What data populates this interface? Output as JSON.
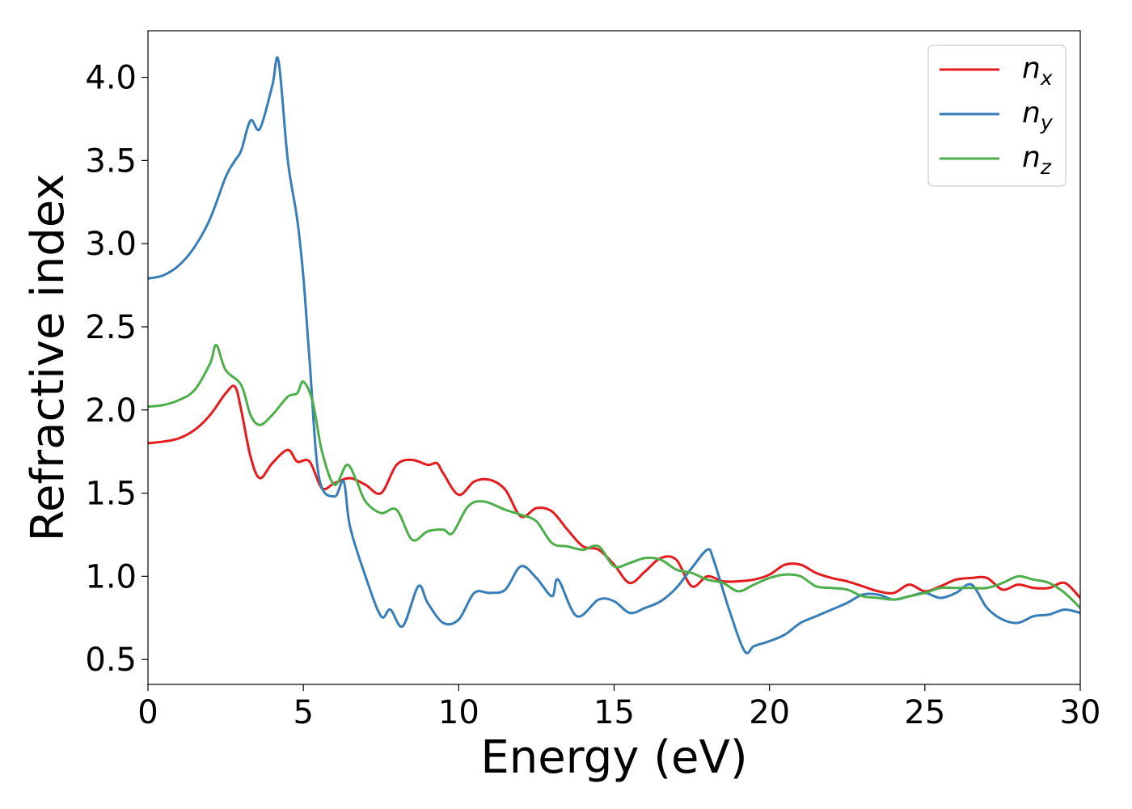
{
  "chart_data": {
    "type": "line",
    "title": "",
    "xlabel": "Energy (eV)",
    "ylabel": "Refractive index",
    "xlim": [
      0,
      30
    ],
    "ylim": [
      0.35,
      4.28
    ],
    "xticks": [
      0,
      5,
      10,
      15,
      20,
      25,
      30
    ],
    "yticks": [
      0.5,
      1.0,
      1.5,
      2.0,
      2.5,
      3.0,
      3.5,
      4.0
    ],
    "xtick_labels": [
      "0",
      "5",
      "10",
      "15",
      "20",
      "25",
      "30"
    ],
    "ytick_labels": [
      "0.5",
      "1.0",
      "1.5",
      "2.0",
      "2.5",
      "3.0",
      "3.5",
      "4.0"
    ],
    "grid": false,
    "legend_position": "top-right",
    "series": [
      {
        "name": "n",
        "subscript": "x",
        "color": "#e41a1c",
        "points": [
          [
            0,
            1.8
          ],
          [
            0.5,
            1.81
          ],
          [
            1.0,
            1.83
          ],
          [
            1.5,
            1.88
          ],
          [
            2.0,
            1.97
          ],
          [
            2.5,
            2.1
          ],
          [
            2.8,
            2.14
          ],
          [
            3.0,
            2.0
          ],
          [
            3.3,
            1.72
          ],
          [
            3.6,
            1.59
          ],
          [
            4.0,
            1.68
          ],
          [
            4.5,
            1.76
          ],
          [
            4.8,
            1.69
          ],
          [
            5.2,
            1.69
          ],
          [
            5.6,
            1.53
          ],
          [
            6.0,
            1.56
          ],
          [
            6.5,
            1.59
          ],
          [
            7.0,
            1.55
          ],
          [
            7.5,
            1.5
          ],
          [
            8.0,
            1.67
          ],
          [
            8.5,
            1.7
          ],
          [
            9.0,
            1.67
          ],
          [
            9.3,
            1.68
          ],
          [
            9.5,
            1.62
          ],
          [
            10.0,
            1.49
          ],
          [
            10.5,
            1.57
          ],
          [
            11.0,
            1.58
          ],
          [
            11.5,
            1.52
          ],
          [
            12.0,
            1.36
          ],
          [
            12.5,
            1.41
          ],
          [
            13.0,
            1.39
          ],
          [
            13.5,
            1.28
          ],
          [
            14.0,
            1.18
          ],
          [
            14.5,
            1.16
          ],
          [
            15.0,
            1.07
          ],
          [
            15.5,
            0.96
          ],
          [
            16.0,
            1.03
          ],
          [
            16.5,
            1.11
          ],
          [
            17.0,
            1.1
          ],
          [
            17.5,
            0.94
          ],
          [
            18.0,
            1.0
          ],
          [
            18.5,
            0.97
          ],
          [
            19.0,
            0.97
          ],
          [
            19.5,
            0.98
          ],
          [
            20.0,
            1.01
          ],
          [
            20.5,
            1.07
          ],
          [
            21.0,
            1.07
          ],
          [
            21.5,
            1.02
          ],
          [
            22.0,
            0.99
          ],
          [
            22.5,
            0.97
          ],
          [
            23.0,
            0.94
          ],
          [
            23.5,
            0.91
          ],
          [
            24.0,
            0.9
          ],
          [
            24.5,
            0.95
          ],
          [
            25.0,
            0.91
          ],
          [
            25.5,
            0.94
          ],
          [
            26.0,
            0.98
          ],
          [
            26.5,
            0.99
          ],
          [
            27.0,
            0.99
          ],
          [
            27.5,
            0.92
          ],
          [
            28.0,
            0.95
          ],
          [
            28.5,
            0.93
          ],
          [
            29.0,
            0.93
          ],
          [
            29.5,
            0.96
          ],
          [
            30.0,
            0.87
          ]
        ]
      },
      {
        "name": "n",
        "subscript": "y",
        "color": "#377eb8",
        "points": [
          [
            0,
            2.79
          ],
          [
            0.5,
            2.81
          ],
          [
            1.0,
            2.87
          ],
          [
            1.5,
            2.98
          ],
          [
            2.0,
            3.15
          ],
          [
            2.5,
            3.4
          ],
          [
            2.8,
            3.5
          ],
          [
            3.0,
            3.56
          ],
          [
            3.3,
            3.74
          ],
          [
            3.6,
            3.69
          ],
          [
            4.0,
            3.95
          ],
          [
            4.2,
            4.1
          ],
          [
            4.5,
            3.5
          ],
          [
            4.8,
            3.15
          ],
          [
            5.0,
            2.8
          ],
          [
            5.2,
            2.3
          ],
          [
            5.5,
            1.6
          ],
          [
            6.0,
            1.48
          ],
          [
            6.3,
            1.57
          ],
          [
            6.5,
            1.3
          ],
          [
            7.0,
            1.0
          ],
          [
            7.5,
            0.76
          ],
          [
            7.8,
            0.8
          ],
          [
            8.2,
            0.7
          ],
          [
            8.7,
            0.94
          ],
          [
            9.0,
            0.84
          ],
          [
            9.5,
            0.72
          ],
          [
            10.0,
            0.74
          ],
          [
            10.5,
            0.9
          ],
          [
            11.0,
            0.9
          ],
          [
            11.5,
            0.92
          ],
          [
            12.0,
            1.06
          ],
          [
            12.5,
            0.99
          ],
          [
            13.0,
            0.88
          ],
          [
            13.2,
            0.98
          ],
          [
            13.8,
            0.76
          ],
          [
            14.5,
            0.86
          ],
          [
            15.0,
            0.85
          ],
          [
            15.5,
            0.78
          ],
          [
            16.0,
            0.81
          ],
          [
            16.5,
            0.85
          ],
          [
            17.0,
            0.93
          ],
          [
            17.5,
            1.05
          ],
          [
            18.0,
            1.16
          ],
          [
            18.2,
            1.1
          ],
          [
            18.7,
            0.8
          ],
          [
            19.2,
            0.55
          ],
          [
            19.5,
            0.58
          ],
          [
            20.0,
            0.61
          ],
          [
            20.5,
            0.65
          ],
          [
            21.0,
            0.72
          ],
          [
            21.5,
            0.76
          ],
          [
            22.0,
            0.8
          ],
          [
            22.5,
            0.84
          ],
          [
            23.0,
            0.89
          ],
          [
            23.5,
            0.89
          ],
          [
            24.0,
            0.86
          ],
          [
            24.5,
            0.88
          ],
          [
            25.0,
            0.9
          ],
          [
            25.5,
            0.87
          ],
          [
            26.0,
            0.9
          ],
          [
            26.5,
            0.95
          ],
          [
            27.0,
            0.81
          ],
          [
            27.5,
            0.74
          ],
          [
            28.0,
            0.72
          ],
          [
            28.5,
            0.76
          ],
          [
            29.0,
            0.77
          ],
          [
            29.5,
            0.8
          ],
          [
            30.0,
            0.78
          ]
        ]
      },
      {
        "name": "n",
        "subscript": "z",
        "color": "#4daf4a",
        "points": [
          [
            0,
            2.02
          ],
          [
            0.5,
            2.03
          ],
          [
            1.0,
            2.06
          ],
          [
            1.5,
            2.12
          ],
          [
            2.0,
            2.28
          ],
          [
            2.2,
            2.39
          ],
          [
            2.5,
            2.24
          ],
          [
            3.0,
            2.15
          ],
          [
            3.3,
            1.97
          ],
          [
            3.6,
            1.91
          ],
          [
            4.0,
            1.97
          ],
          [
            4.5,
            2.08
          ],
          [
            4.8,
            2.1
          ],
          [
            5.0,
            2.17
          ],
          [
            5.3,
            2.05
          ],
          [
            5.6,
            1.75
          ],
          [
            6.0,
            1.55
          ],
          [
            6.4,
            1.67
          ],
          [
            6.7,
            1.58
          ],
          [
            7.0,
            1.45
          ],
          [
            7.5,
            1.38
          ],
          [
            8.0,
            1.4
          ],
          [
            8.5,
            1.22
          ],
          [
            9.0,
            1.27
          ],
          [
            9.5,
            1.28
          ],
          [
            9.8,
            1.26
          ],
          [
            10.3,
            1.42
          ],
          [
            10.8,
            1.45
          ],
          [
            11.5,
            1.4
          ],
          [
            12.0,
            1.37
          ],
          [
            12.5,
            1.33
          ],
          [
            13.0,
            1.2
          ],
          [
            13.5,
            1.18
          ],
          [
            14.0,
            1.16
          ],
          [
            14.5,
            1.18
          ],
          [
            15.0,
            1.06
          ],
          [
            15.5,
            1.08
          ],
          [
            16.0,
            1.11
          ],
          [
            16.5,
            1.1
          ],
          [
            17.0,
            1.04
          ],
          [
            17.5,
            1.02
          ],
          [
            18.0,
            0.98
          ],
          [
            18.5,
            0.96
          ],
          [
            19.0,
            0.91
          ],
          [
            19.5,
            0.95
          ],
          [
            20.0,
            0.99
          ],
          [
            20.5,
            1.01
          ],
          [
            21.0,
            1.0
          ],
          [
            21.5,
            0.94
          ],
          [
            22.0,
            0.93
          ],
          [
            22.5,
            0.92
          ],
          [
            23.0,
            0.88
          ],
          [
            23.5,
            0.87
          ],
          [
            24.0,
            0.86
          ],
          [
            24.5,
            0.88
          ],
          [
            25.0,
            0.9
          ],
          [
            25.5,
            0.93
          ],
          [
            26.0,
            0.93
          ],
          [
            26.5,
            0.93
          ],
          [
            27.0,
            0.93
          ],
          [
            27.5,
            0.96
          ],
          [
            28.0,
            1.0
          ],
          [
            28.5,
            0.98
          ],
          [
            29.0,
            0.96
          ],
          [
            29.5,
            0.9
          ],
          [
            30.0,
            0.81
          ]
        ]
      }
    ]
  }
}
